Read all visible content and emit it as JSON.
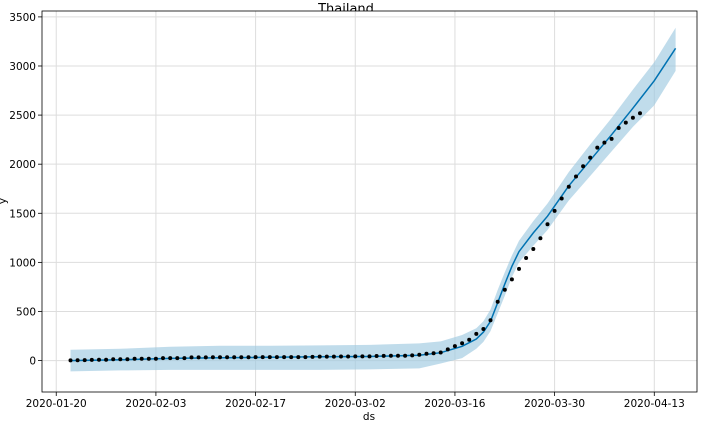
{
  "chart_data": {
    "type": "line",
    "title": "Thailand",
    "xlabel": "ds",
    "ylabel": "y",
    "x_ticks": [
      "2020-01-20",
      "2020-02-03",
      "2020-02-17",
      "2020-03-02",
      "2020-03-16",
      "2020-03-30",
      "2020-04-13"
    ],
    "y_ticks": [
      0,
      500,
      1000,
      1500,
      2000,
      2500,
      3000,
      3500
    ],
    "xlim": [
      "2020-01-18",
      "2020-04-19"
    ],
    "ylim": [
      -320,
      3560
    ],
    "grid": true,
    "colors": {
      "forecast_line": "#0072B2",
      "interval_fill": "#9ecae1",
      "points": "#000000",
      "grid": "#dddddd"
    },
    "series": [
      {
        "kind": "observed",
        "x": [
          "2020-01-22",
          "2020-01-23",
          "2020-01-24",
          "2020-01-25",
          "2020-01-26",
          "2020-01-27",
          "2020-01-28",
          "2020-01-29",
          "2020-01-30",
          "2020-01-31",
          "2020-02-01",
          "2020-02-02",
          "2020-02-03",
          "2020-02-04",
          "2020-02-05",
          "2020-02-06",
          "2020-02-07",
          "2020-02-08",
          "2020-02-09",
          "2020-02-10",
          "2020-02-11",
          "2020-02-12",
          "2020-02-13",
          "2020-02-14",
          "2020-02-15",
          "2020-02-16",
          "2020-02-17",
          "2020-02-18",
          "2020-02-19",
          "2020-02-20",
          "2020-02-21",
          "2020-02-22",
          "2020-02-23",
          "2020-02-24",
          "2020-02-25",
          "2020-02-26",
          "2020-02-27",
          "2020-02-28",
          "2020-02-29",
          "2020-03-01",
          "2020-03-02",
          "2020-03-03",
          "2020-03-04",
          "2020-03-05",
          "2020-03-06",
          "2020-03-07",
          "2020-03-08",
          "2020-03-09",
          "2020-03-10",
          "2020-03-11",
          "2020-03-12",
          "2020-03-13",
          "2020-03-14",
          "2020-03-15",
          "2020-03-16",
          "2020-03-17",
          "2020-03-18",
          "2020-03-19",
          "2020-03-20",
          "2020-03-21",
          "2020-03-22",
          "2020-03-23",
          "2020-03-24",
          "2020-03-25",
          "2020-03-26",
          "2020-03-27",
          "2020-03-28",
          "2020-03-29",
          "2020-03-30",
          "2020-03-31",
          "2020-04-01",
          "2020-04-02",
          "2020-04-03",
          "2020-04-04",
          "2020-04-05",
          "2020-04-06",
          "2020-04-07",
          "2020-04-08",
          "2020-04-09",
          "2020-04-10",
          "2020-04-11"
        ],
        "y": [
          2,
          3,
          5,
          7,
          8,
          8,
          14,
          14,
          14,
          19,
          19,
          19,
          19,
          25,
          25,
          25,
          25,
          32,
          32,
          32,
          33,
          33,
          33,
          33,
          34,
          34,
          35,
          35,
          35,
          35,
          35,
          35,
          35,
          35,
          37,
          40,
          40,
          41,
          42,
          42,
          43,
          43,
          43,
          47,
          48,
          50,
          50,
          50,
          53,
          59,
          70,
          75,
          82,
          114,
          147,
          177,
          212,
          272,
          322,
          411,
          599,
          721,
          827,
          934,
          1045,
          1136,
          1245,
          1388,
          1524,
          1651,
          1771,
          1875,
          1978,
          2067,
          2169,
          2220,
          2258,
          2369,
          2423,
          2473,
          2518
        ]
      },
      {
        "kind": "forecast",
        "x": [
          "2020-01-22",
          "2020-01-29",
          "2020-02-05",
          "2020-02-12",
          "2020-02-19",
          "2020-02-26",
          "2020-03-04",
          "2020-03-11",
          "2020-03-14",
          "2020-03-17",
          "2020-03-19",
          "2020-03-20",
          "2020-03-21",
          "2020-03-22",
          "2020-03-23",
          "2020-03-24",
          "2020-03-25",
          "2020-03-27",
          "2020-03-29",
          "2020-04-01",
          "2020-04-04",
          "2020-04-07",
          "2020-04-10",
          "2020-04-13",
          "2020-04-16"
        ],
        "yhat": [
          0,
          8,
          22,
          28,
          33,
          38,
          42,
          55,
          80,
          145,
          220,
          290,
          400,
          590,
          780,
          960,
          1110,
          1300,
          1470,
          1780,
          2040,
          2300,
          2570,
          2850,
          3180
        ],
        "yhat_lower": [
          -110,
          -100,
          -95,
          -95,
          -95,
          -95,
          -90,
          -80,
          -30,
          25,
          120,
          190,
          300,
          480,
          660,
          850,
          1000,
          1170,
          1330,
          1630,
          1880,
          2130,
          2380,
          2600,
          2950
        ],
        "yhat_upper": [
          110,
          120,
          140,
          150,
          150,
          155,
          160,
          175,
          195,
          260,
          330,
          400,
          520,
          720,
          900,
          1070,
          1220,
          1420,
          1600,
          1920,
          2200,
          2470,
          2760,
          3040,
          3390
        ]
      }
    ]
  }
}
